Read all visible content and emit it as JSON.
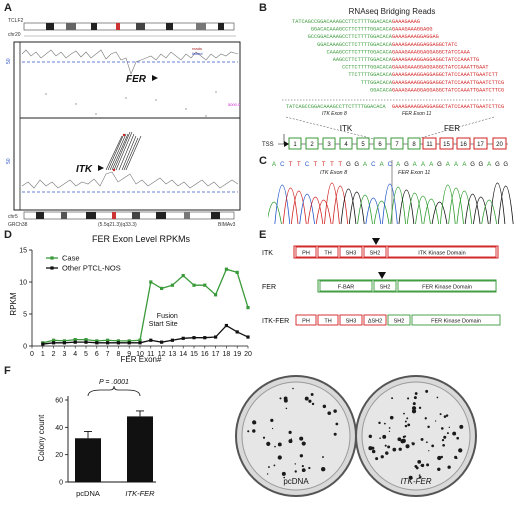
{
  "panels": {
    "A": "A",
    "B": "B",
    "C": "C",
    "D": "D",
    "E": "E",
    "F": "F"
  },
  "panelA": {
    "top_chr_label": "chr20",
    "top_gene": "TCLF2",
    "bottom_chr_label": "chr5",
    "track_label_top": "50",
    "track_label_bottom": "50",
    "fer_label": "FER",
    "itk_label": "ITK",
    "mid_label": "5000.0",
    "footer_left": "GRCh38",
    "footer_mid": "(5.5q21.3)(q33.3)",
    "footer_right": "BIMAv3",
    "legend": [
      "reads",
      "linked"
    ]
  },
  "panelB": {
    "title": "RNAseq Bridging Reads",
    "reads_green": [
      "TATCAGCCGGACAAAGCCTTCTTTTGGACACA",
      "GGACACAAAGCCTTCTTTTGGACACA",
      "GCCGGACAAAGCCTTCTTTTGGACACA",
      "GGACAAAGCCTTCTTTTGGACACA",
      "CAAAGCCTTCTTTTGGACACA",
      "AAGCCTTCTTTTGGACACA",
      "CCTTCTTTTGGACACA",
      "TTCTTTTGGACACA",
      "TTTGGACACA",
      "GGACACA"
    ],
    "reads_red": [
      "GAAAGAAAG",
      "GAAAGAAAGGAGG",
      "GAAAGAAAGGAGGAG",
      "GAAAGAAAGGAGGAGGCTATC",
      "GAAAGAAAGGAGGAGGCTATCCAAA",
      "GAAAGAAAGGAGGAGGCTATCCAAATTG",
      "GAAAGAAAGGAGGAGGCTATCCAAATTGAAT",
      "GAAAGAAAGGAGGAGGCTATCCAAATTGAATCTT",
      "GAAAGAAAGGAGGAGGCTATCCAAATTGAATCTTCG",
      "GAAAGAAAGGAGGAGGCTATCCAAATTGAATCTTCG"
    ],
    "consensus_green": "TATCAGCCGGACAAAGCCTTCTTTTGGACACA",
    "consensus_red": "GAAAGAAAGGAGGAGGCTATCCAAATTGAATCTTCG",
    "itk_exon_label": "ITK Exon 8",
    "fer_exon_label": "FER Exon 11",
    "tss": "TSS",
    "itk": "ITK",
    "fer": "FER",
    "exons_green": [
      "1",
      "2",
      "3",
      "4",
      "5",
      "6",
      "7",
      "8"
    ],
    "exons_red": [
      "11",
      "15",
      "16",
      "17",
      "20"
    ]
  },
  "panelC": {
    "bases": [
      "A",
      "C",
      "T",
      "T",
      "C",
      "T",
      "T",
      "T",
      "T",
      "G",
      "G",
      "A",
      "C",
      "A",
      "C",
      "A",
      "G",
      "A",
      "A",
      "A",
      "G",
      "A",
      "A",
      "A",
      "G",
      "G",
      "A",
      "G",
      "G"
    ],
    "itk_label": "ITK Exon 8",
    "fer_label": "FER Exon 11"
  },
  "chart_data": {
    "type": "line",
    "title": "FER Exon Level RPKMs",
    "xlabel": "FER Exon#",
    "ylabel": "RPKM",
    "x": [
      1,
      2,
      3,
      4,
      5,
      6,
      7,
      8,
      9,
      10,
      11,
      12,
      13,
      14,
      15,
      16,
      17,
      18,
      19,
      20
    ],
    "ylim": [
      0,
      15
    ],
    "yticks": [
      0,
      5,
      10,
      15
    ],
    "series": [
      {
        "name": "Case",
        "color": "#3a9a3a",
        "values": [
          0.5,
          0.9,
          0.8,
          1.0,
          1.0,
          0.8,
          0.9,
          0.8,
          0.8,
          0.9,
          10.0,
          9.0,
          9.5,
          11.0,
          9.5,
          9.5,
          8.0,
          12.0,
          11.5,
          6.0
        ]
      },
      {
        "name": "Other PTCL-NOS",
        "color": "#111111",
        "values": [
          0.3,
          0.5,
          0.5,
          0.6,
          0.6,
          0.5,
          0.5,
          0.5,
          0.5,
          0.5,
          0.9,
          0.6,
          0.9,
          1.2,
          1.3,
          1.3,
          1.4,
          3.2,
          2.2,
          1.4
        ]
      }
    ],
    "annotation": "Fusion\nStart Site",
    "annotation_x": 11
  },
  "panelE": {
    "rows": [
      {
        "name": "ITK",
        "domains": [
          "PH",
          "TH",
          "SH3",
          "SH2",
          "ITK Kinase Domain"
        ]
      },
      {
        "name": "FER",
        "domains": [
          "F-BAR",
          "SH2",
          "FER Kinase Domain"
        ]
      },
      {
        "name": "ITK-FER",
        "domains": [
          "PH",
          "TH",
          "SH3",
          "ΔSH2",
          "SH2",
          "FER Kinase Domain"
        ]
      }
    ]
  },
  "panelF": {
    "ylabel": "Colony count",
    "pvalue": "P = .0001",
    "categories": [
      "pcDNA",
      "ITK-FER"
    ],
    "values": [
      32,
      48
    ],
    "errors": [
      5,
      4
    ],
    "ylim": [
      0,
      60
    ],
    "yticks": [
      "0",
      "20",
      "40",
      "60"
    ],
    "dish_labels": [
      "pcDNA",
      "ITK-FER"
    ]
  }
}
